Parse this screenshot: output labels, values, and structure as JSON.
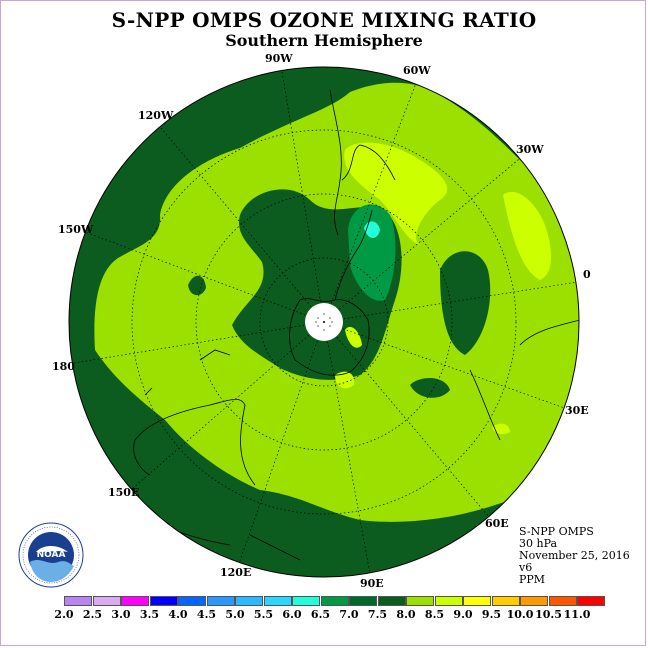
{
  "header": {
    "title": "S-NPP OMPS OZONE MIXING RATIO",
    "subtitle": "Southern Hemisphere"
  },
  "longitude_labels": [
    "90W",
    "60W",
    "30W",
    "0",
    "30E",
    "60E",
    "90E",
    "120E",
    "150E",
    "180",
    "150W",
    "120W"
  ],
  "info": {
    "line1": "S-NPP OMPS",
    "line2": "30 hPa",
    "line3": "November 25, 2016",
    "line4": "v6",
    "line5": "PPM"
  },
  "logo": {
    "text": "NOAA",
    "ring_text": "NATIONAL OCEANIC AND ATMOSPHERIC ADMINISTRATION",
    "ring_bottom": "U.S. DEPARTMENT OF COMMERCE"
  },
  "color_scale": {
    "ticks": [
      "2.0",
      "2.5",
      "3.0",
      "3.5",
      "4.0",
      "4.5",
      "5.0",
      "5.5",
      "6.0",
      "6.5",
      "7.0",
      "7.5",
      "8.0",
      "8.5",
      "9.0",
      "9.5",
      "10.0",
      "10.5",
      "11.0"
    ],
    "colors": [
      "#b784f0",
      "#d9a9f2",
      "#ff00ff",
      "#0000ff",
      "#0066ff",
      "#2a97ff",
      "#2ab8ff",
      "#2cd5ff",
      "#22ffd8",
      "#009944",
      "#006a2a",
      "#0b5c1e",
      "#9be000",
      "#ccff00",
      "#ffff00",
      "#ffcc00",
      "#ff9900",
      "#ff5500",
      "#ff0000",
      "#aa0000",
      "#8b5a3c"
    ]
  },
  "map": {
    "projection": "south-polar-stereographic",
    "field_levels_ppm": {
      "background": "7.0-7.5",
      "main_band": "7.5-8.0",
      "patches_light": "8.0-8.5",
      "dark_regions": "6.5-7.0",
      "core": "6.0-6.5"
    }
  }
}
